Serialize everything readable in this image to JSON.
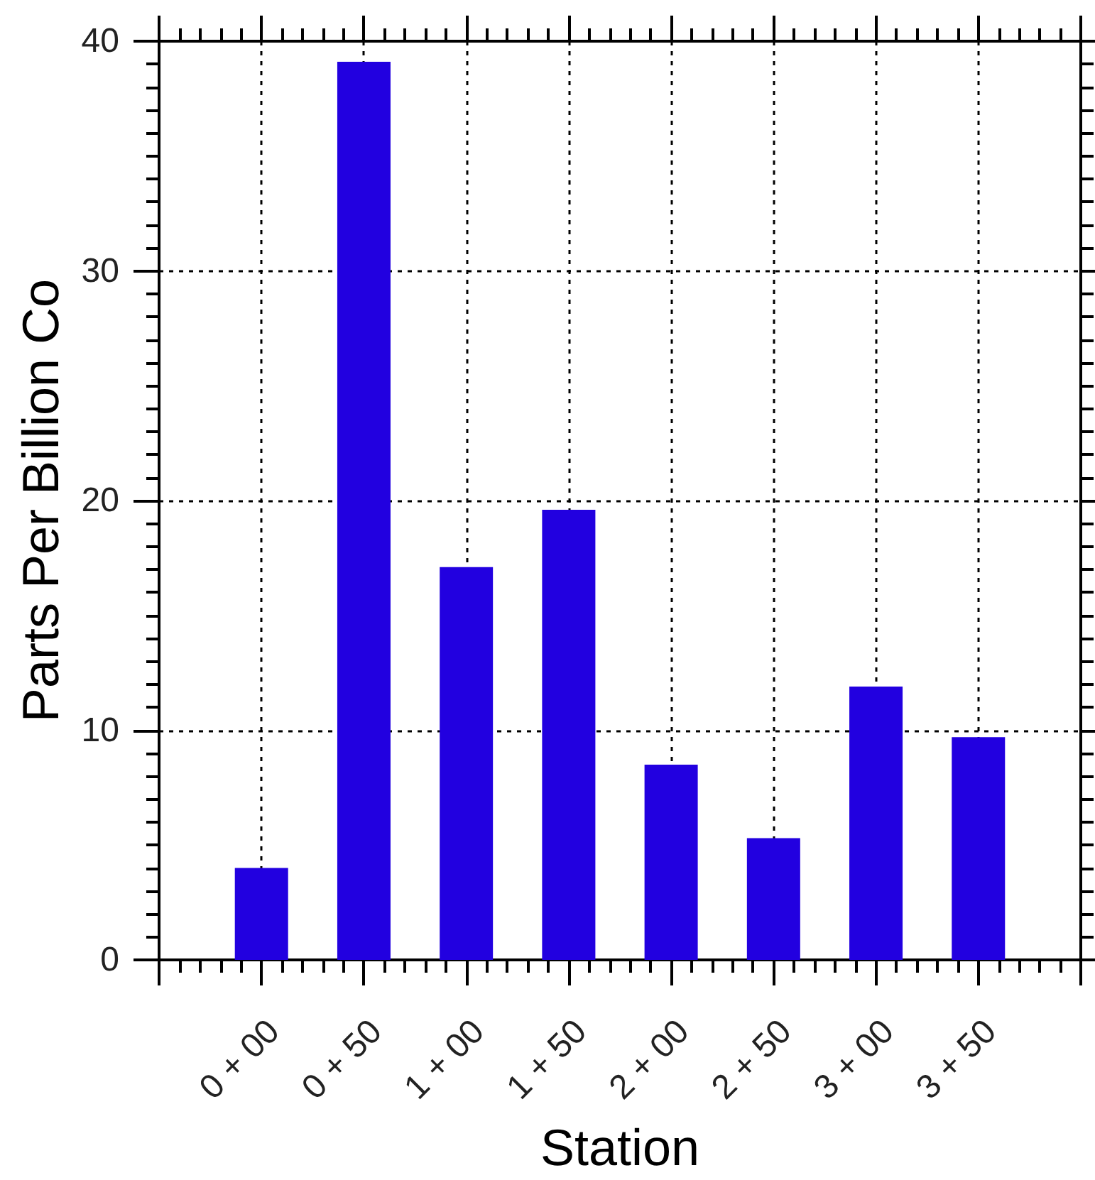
{
  "chart_data": {
    "type": "bar",
    "xlabel": "Station",
    "ylabel": "Parts Per Billion Co",
    "categories": [
      "0 + 00",
      "0 + 50",
      "1 + 00",
      "1 + 50",
      "2 + 00",
      "2 + 50",
      "3 + 00",
      "3 + 50"
    ],
    "values": [
      4.0,
      39.1,
      17.1,
      19.6,
      8.5,
      5.3,
      11.9,
      9.7
    ],
    "color": "#2200e0",
    "ylim": [
      0,
      40
    ],
    "yticks": [
      0,
      10,
      20,
      30,
      40
    ],
    "grid": true
  }
}
